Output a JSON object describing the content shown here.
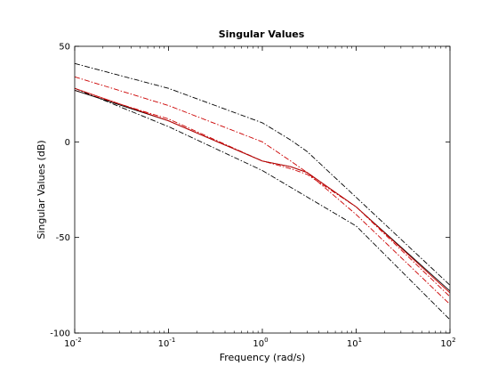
{
  "chart_data": {
    "type": "line",
    "title": "Singular Values",
    "xlabel": "Frequency (rad/s)",
    "ylabel": "Singular Values (dB)",
    "x_scale": "log",
    "xlim": [
      0.01,
      100
    ],
    "ylim": [
      -100,
      50
    ],
    "grid": false,
    "legend": "none",
    "x_ticks": [
      {
        "base": "10",
        "exp": "-2",
        "value": 0.01
      },
      {
        "base": "10",
        "exp": "-1",
        "value": 0.1
      },
      {
        "base": "10",
        "exp": "0",
        "value": 1
      },
      {
        "base": "10",
        "exp": "1",
        "value": 10
      },
      {
        "base": "10",
        "exp": "2",
        "value": 100
      }
    ],
    "y_ticks": [
      {
        "label": "50",
        "value": 50
      },
      {
        "label": "0",
        "value": 0
      },
      {
        "label": "-50",
        "value": -50
      },
      {
        "label": "-100",
        "value": -100
      }
    ],
    "series": [
      {
        "color": "#000000",
        "dash": "dashdot",
        "x": [
          0.01,
          0.1,
          1,
          2,
          3,
          10,
          100
        ],
        "y": [
          41,
          28,
          10,
          1,
          -5,
          -29,
          -75
        ]
      },
      {
        "color": "#000000",
        "dash": "dashdot",
        "x": [
          0.01,
          0.1,
          1,
          10,
          100
        ],
        "y": [
          28,
          8,
          -15,
          -44,
          -93
        ]
      },
      {
        "color": "#cc0000",
        "dash": "dashdot",
        "x": [
          0.01,
          0.1,
          1,
          2,
          3,
          10,
          100
        ],
        "y": [
          34,
          19,
          0,
          -10,
          -16,
          -38,
          -85
        ]
      },
      {
        "color": "#cc0000",
        "dash": "dashdot",
        "x": [
          0.01,
          0.1,
          1,
          2,
          3,
          10,
          100
        ],
        "y": [
          27,
          12,
          -10,
          -14,
          -17,
          -34,
          -81
        ]
      },
      {
        "color": "#000000",
        "dash": "solid",
        "x": [
          0.01,
          0.1,
          1,
          2,
          3,
          10,
          100
        ],
        "y": [
          27,
          11,
          -10,
          -13,
          -16,
          -34,
          -78
        ]
      },
      {
        "color": "#cc0000",
        "dash": "solid",
        "x": [
          0.01,
          0.1,
          1,
          2,
          3,
          10,
          100
        ],
        "y": [
          28,
          11,
          -10,
          -13,
          -16,
          -34,
          -79
        ]
      }
    ]
  }
}
